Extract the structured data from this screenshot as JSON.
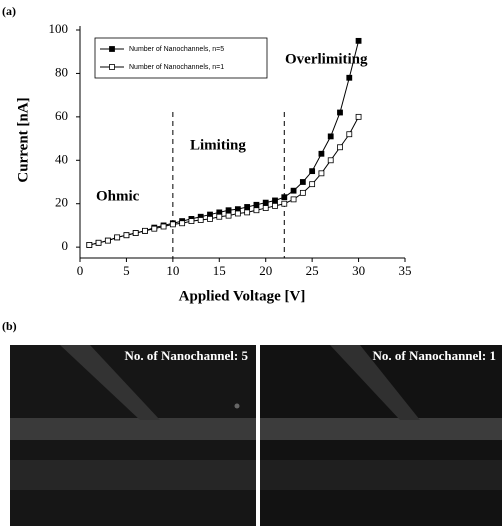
{
  "panel_labels": [
    "(a)",
    "(b)"
  ],
  "chart_data": {
    "type": "line",
    "x_label": "Applied Voltage [V]",
    "y_label": "Current [nA]",
    "annotations": [
      "Ohmic",
      "Limiting",
      "Overlimiting"
    ],
    "dividers": [
      10,
      22
    ],
    "x": [
      1,
      2,
      3,
      4,
      5,
      6,
      7,
      8,
      9,
      10,
      11,
      12,
      13,
      14,
      15,
      16,
      17,
      18,
      19,
      20,
      21,
      22,
      23,
      24,
      25,
      26,
      27,
      28,
      29,
      30
    ],
    "series": [
      {
        "name": "Number of Nanochannels, n=5",
        "color": "#000000",
        "marker": "filled",
        "values": [
          1,
          2,
          3,
          4.5,
          5.5,
          6.5,
          7.5,
          9,
          10,
          11,
          12,
          13,
          14,
          15,
          16,
          17,
          17.5,
          18.5,
          19.5,
          20.5,
          21.5,
          23,
          26,
          30,
          35,
          43,
          51,
          62,
          78,
          95
        ]
      },
      {
        "name": "Number of Nanochannels, n=1",
        "color": "#000000",
        "marker": "open",
        "values": [
          1,
          2,
          3,
          4.5,
          5.5,
          6.5,
          7.5,
          8.5,
          9.5,
          10.5,
          11,
          12,
          12.5,
          13,
          14,
          14.5,
          15.5,
          16,
          17,
          18,
          19,
          20,
          22,
          25,
          29,
          34,
          40,
          46,
          52,
          60
        ]
      }
    ],
    "xlim": [
      0,
      35
    ],
    "xticks": [
      0,
      5,
      10,
      15,
      20,
      25,
      30,
      35
    ],
    "ylim": [
      -5,
      100
    ],
    "yticks": [
      0,
      20,
      40,
      60,
      80,
      100
    ]
  },
  "images": [
    {
      "caption": "No. of Nanochannel: 5"
    },
    {
      "caption": "No. of Nanochannel: 1"
    }
  ]
}
